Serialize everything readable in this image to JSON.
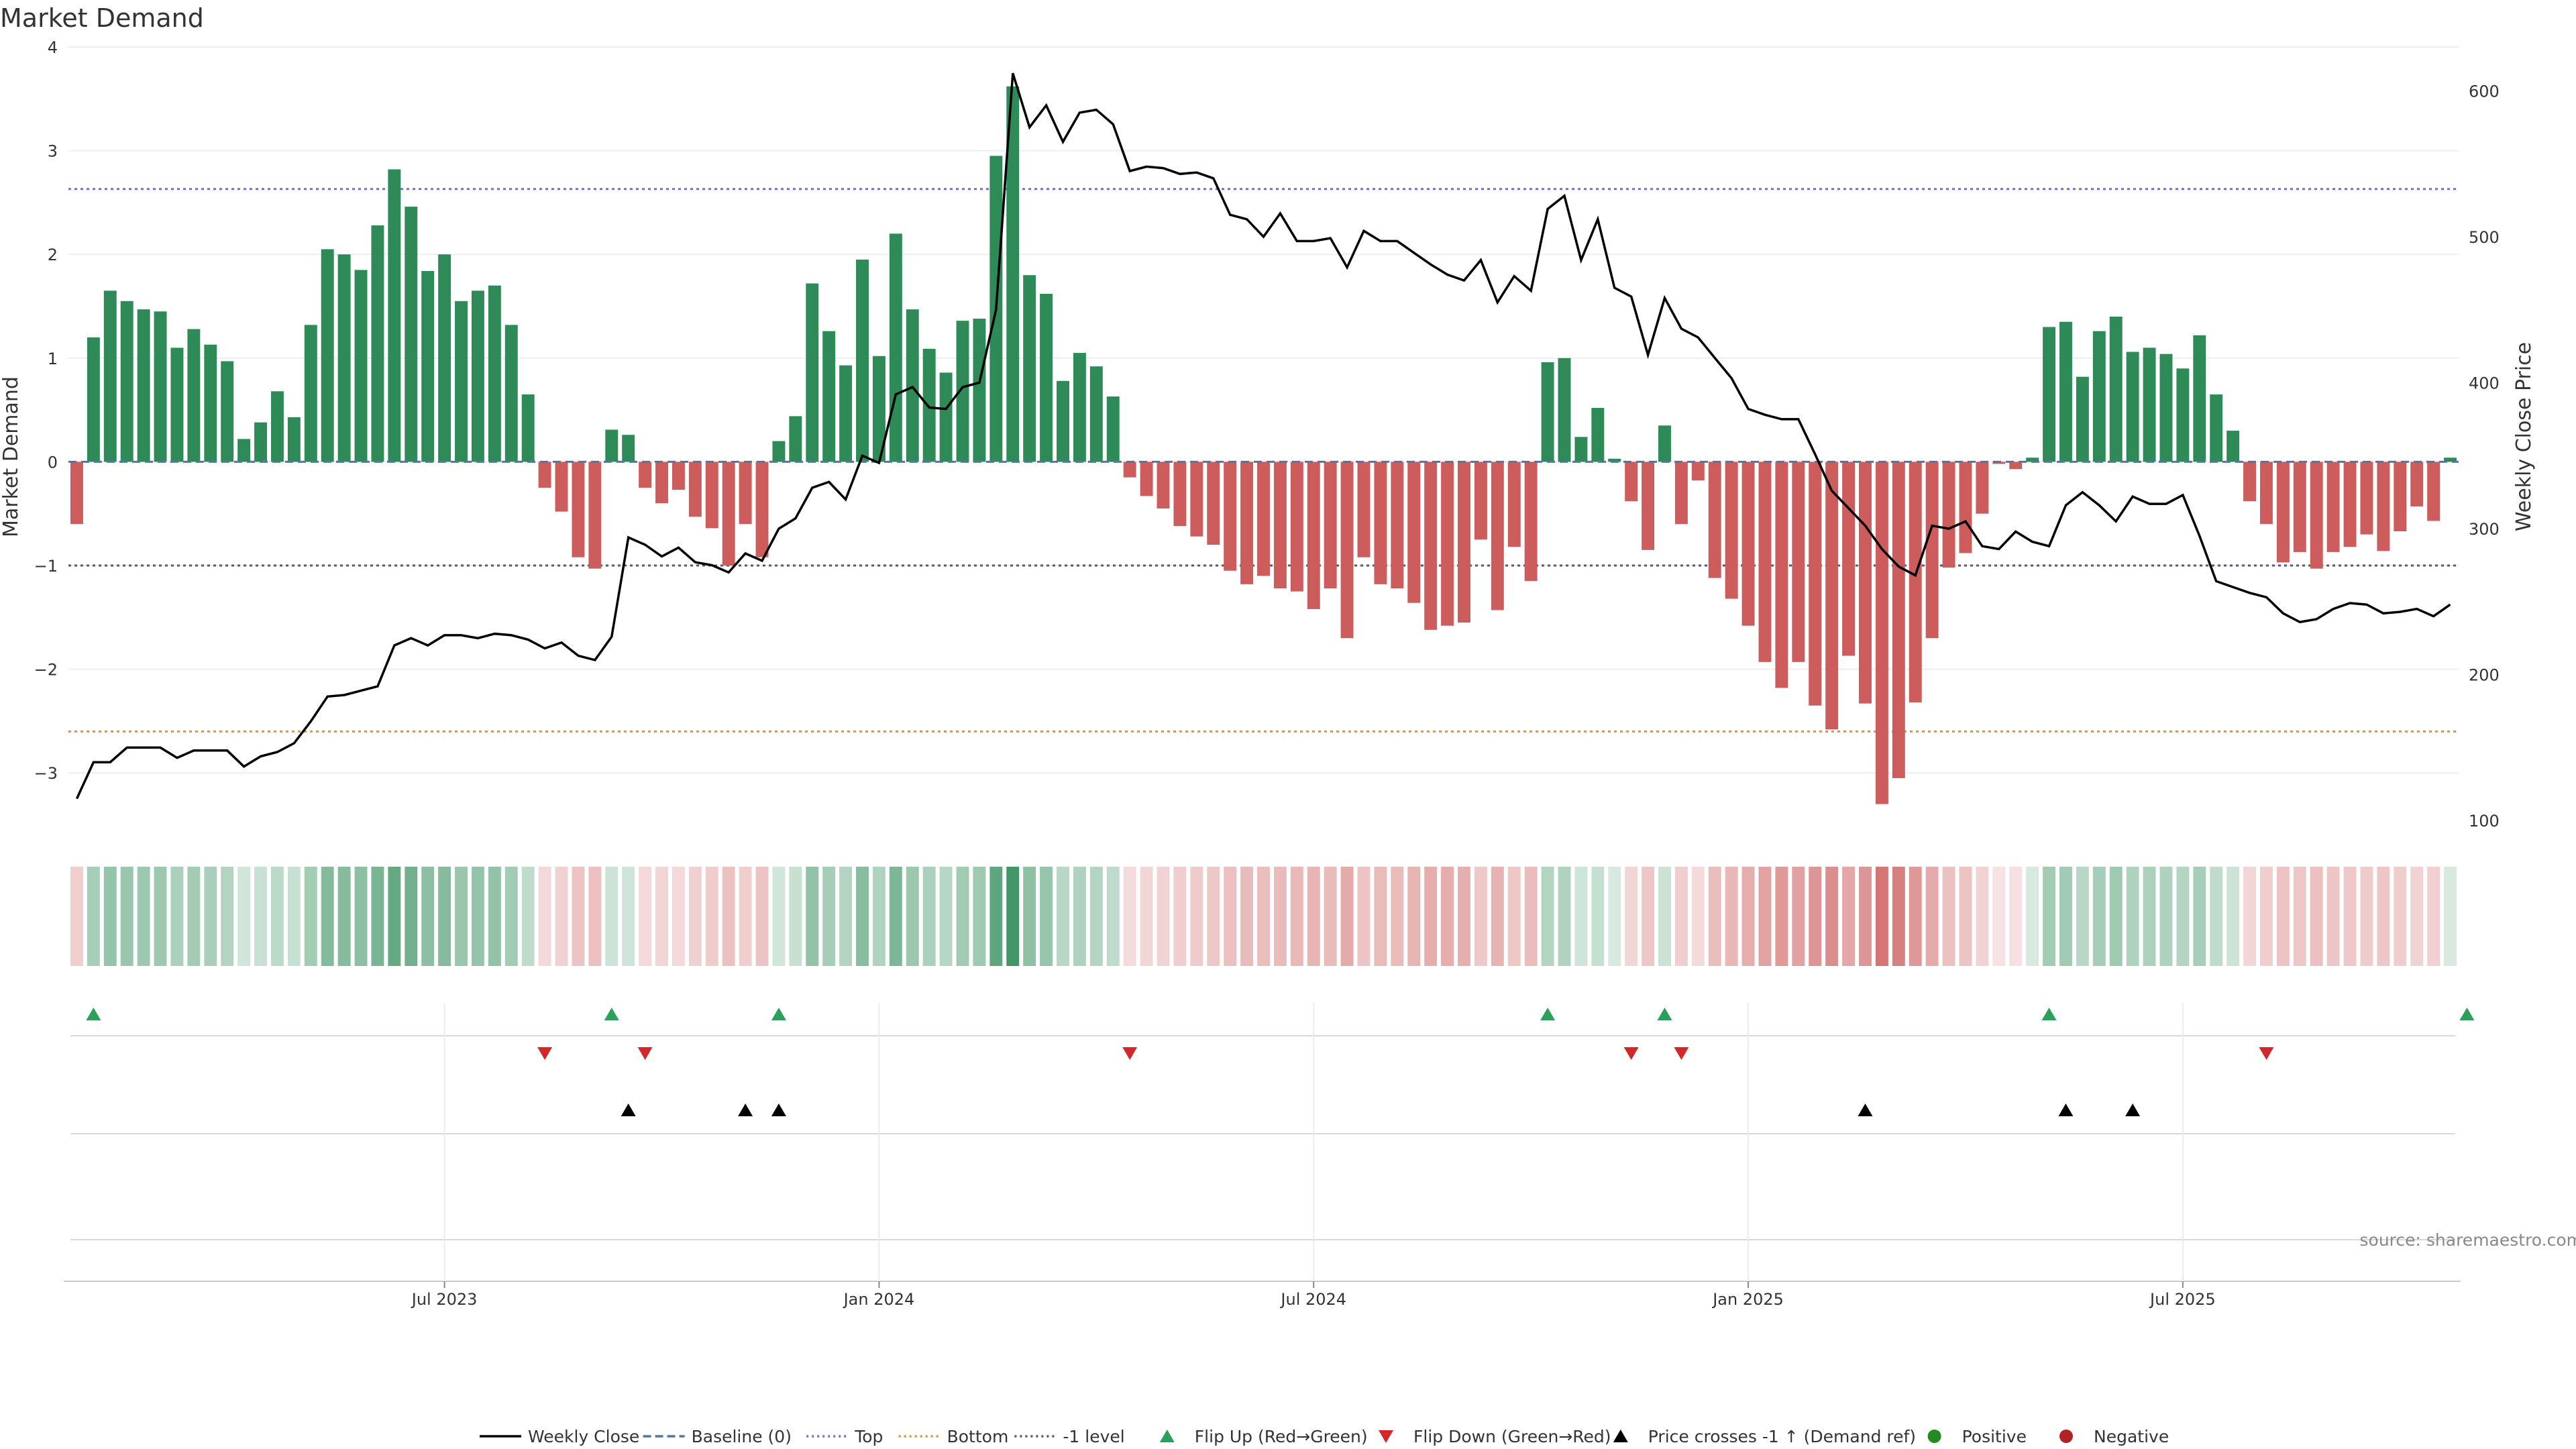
{
  "chart_data": {
    "type": "bar",
    "title": "Market Demand",
    "ylabel_left": "Market Demand",
    "ylabel_right": "Weekly Close Price",
    "ylim_left": [
      -3.6,
      4.0
    ],
    "ylim_right": [
      90,
      630
    ],
    "yticks_left": [
      4,
      3,
      2,
      1,
      0,
      -1,
      -2,
      -3
    ],
    "yticks_left_labels": [
      "4",
      "3",
      "2",
      "1",
      "0",
      "−1",
      "−2",
      "−3"
    ],
    "yticks_right": [
      600,
      500,
      400,
      300,
      200,
      100
    ],
    "xticks": [
      {
        "label": "Jul 2023",
        "index": 22
      },
      {
        "label": "Jan 2024",
        "index": 48
      },
      {
        "label": "Jul 2024",
        "index": 74
      },
      {
        "label": "Jan 2025",
        "index": 100
      },
      {
        "label": "Jul 2025",
        "index": 126
      }
    ],
    "reference_lines": {
      "top": 2.63,
      "bottom": -2.6,
      "minus_one": -1,
      "baseline": 0
    },
    "demand": [
      -0.6,
      1.2,
      1.65,
      1.55,
      1.47,
      1.45,
      1.1,
      1.28,
      1.13,
      0.97,
      0.22,
      0.38,
      0.68,
      0.43,
      1.32,
      2.05,
      2.0,
      1.85,
      2.28,
      2.82,
      2.46,
      1.84,
      2.0,
      1.55,
      1.65,
      1.7,
      1.32,
      0.65,
      -0.25,
      -0.48,
      -0.92,
      -1.03,
      0.31,
      0.26,
      -0.25,
      -0.4,
      -0.27,
      -0.53,
      -0.64,
      -1.0,
      -0.6,
      -0.92,
      0.2,
      0.44,
      1.72,
      1.26,
      0.93,
      1.95,
      1.02,
      2.2,
      1.47,
      1.09,
      0.86,
      1.36,
      1.38,
      2.95,
      3.62,
      1.8,
      1.62,
      0.78,
      1.05,
      0.92,
      0.63,
      -0.15,
      -0.33,
      -0.45,
      -0.62,
      -0.72,
      -0.8,
      -1.05,
      -1.18,
      -1.1,
      -1.22,
      -1.25,
      -1.42,
      -1.22,
      -1.7,
      -0.92,
      -1.18,
      -1.22,
      -1.36,
      -1.62,
      -1.58,
      -1.55,
      -0.75,
      -1.43,
      -0.82,
      -1.15,
      0.96,
      1.0,
      0.24,
      0.52,
      0.03,
      -0.38,
      -0.85,
      0.35,
      -0.6,
      -0.18,
      -1.12,
      -1.32,
      -1.58,
      -1.93,
      -2.18,
      -1.93,
      -2.35,
      -2.58,
      -1.87,
      -2.33,
      -3.3,
      -3.05,
      -2.32,
      -1.7,
      -1.02,
      -0.88,
      -0.5,
      -0.02,
      -0.07,
      0.04,
      1.3,
      1.35,
      0.82,
      1.26,
      1.4,
      1.06,
      1.1,
      1.04,
      0.9,
      1.22,
      0.65,
      0.3,
      -0.38,
      -0.6,
      -0.97,
      -0.87,
      -1.03,
      -0.87,
      -0.82,
      -0.7,
      -0.86,
      -0.67,
      -0.43,
      -0.57,
      0.04
    ],
    "close": [
      115,
      140,
      140,
      150,
      150,
      150,
      143,
      148,
      148,
      148,
      137,
      144,
      147,
      153,
      168,
      185,
      186,
      189,
      192,
      220,
      225,
      220,
      227,
      227,
      225,
      228,
      227,
      224,
      218,
      222,
      213,
      210,
      226,
      294,
      289,
      281,
      287,
      277,
      275,
      270,
      283,
      278,
      300,
      307,
      328,
      332,
      320,
      350,
      345,
      392,
      397,
      383,
      382,
      397,
      400,
      450,
      612,
      575,
      590,
      565,
      585,
      587,
      577,
      545,
      548,
      547,
      543,
      544,
      540,
      515,
      512,
      500,
      516,
      497,
      497,
      499,
      479,
      504,
      497,
      497,
      489,
      481,
      474,
      470,
      484,
      455,
      473,
      463,
      519,
      528,
      484,
      512,
      465,
      459,
      419,
      458,
      437,
      431,
      417,
      403,
      382,
      378,
      375,
      375,
      351,
      326,
      314,
      302,
      286,
      274,
      268,
      302,
      300,
      305,
      288,
      286,
      298,
      291,
      288,
      316,
      325,
      316,
      305,
      322,
      317,
      317,
      323,
      295,
      264,
      260,
      256,
      253,
      242,
      236,
      238,
      245,
      249,
      248,
      242,
      243,
      245,
      240,
      248
    ]
  },
  "legend": [
    {
      "label": "Weekly Close",
      "kind": "line-solid",
      "color": "#000000"
    },
    {
      "label": "Baseline (0)",
      "kind": "line-dash",
      "color": "#4c78a8"
    },
    {
      "label": "Top",
      "kind": "line-dot",
      "color": "#7070c8"
    },
    {
      "label": "Bottom",
      "kind": "line-dot",
      "color": "#e69138"
    },
    {
      "label": "-1 level",
      "kind": "line-dot",
      "color": "#555577"
    },
    {
      "label": "Flip Up (Red→Green)",
      "kind": "tri-up",
      "color": "#2ca05a"
    },
    {
      "label": "Flip Down (Green→Red)",
      "kind": "tri-down",
      "color": "#d62728"
    },
    {
      "label": "Price crosses -1 ↑ (Demand ref)",
      "kind": "tri-up",
      "color": "#000000"
    },
    {
      "label": "Positive",
      "kind": "dot",
      "color": "#228b22"
    },
    {
      "label": "Negative",
      "kind": "dot",
      "color": "#b22222"
    }
  ],
  "events": {
    "flip_up": [
      1,
      32,
      42,
      88,
      95,
      118,
      143
    ],
    "flip_down": [
      28,
      34,
      63,
      93,
      96,
      131
    ],
    "price_cross_up": [
      33,
      40,
      42,
      107,
      119,
      123
    ]
  },
  "source": "source: sharemaestro.com",
  "colors": {
    "positive": "#2e8b57",
    "negative": "#cd5c5c"
  }
}
